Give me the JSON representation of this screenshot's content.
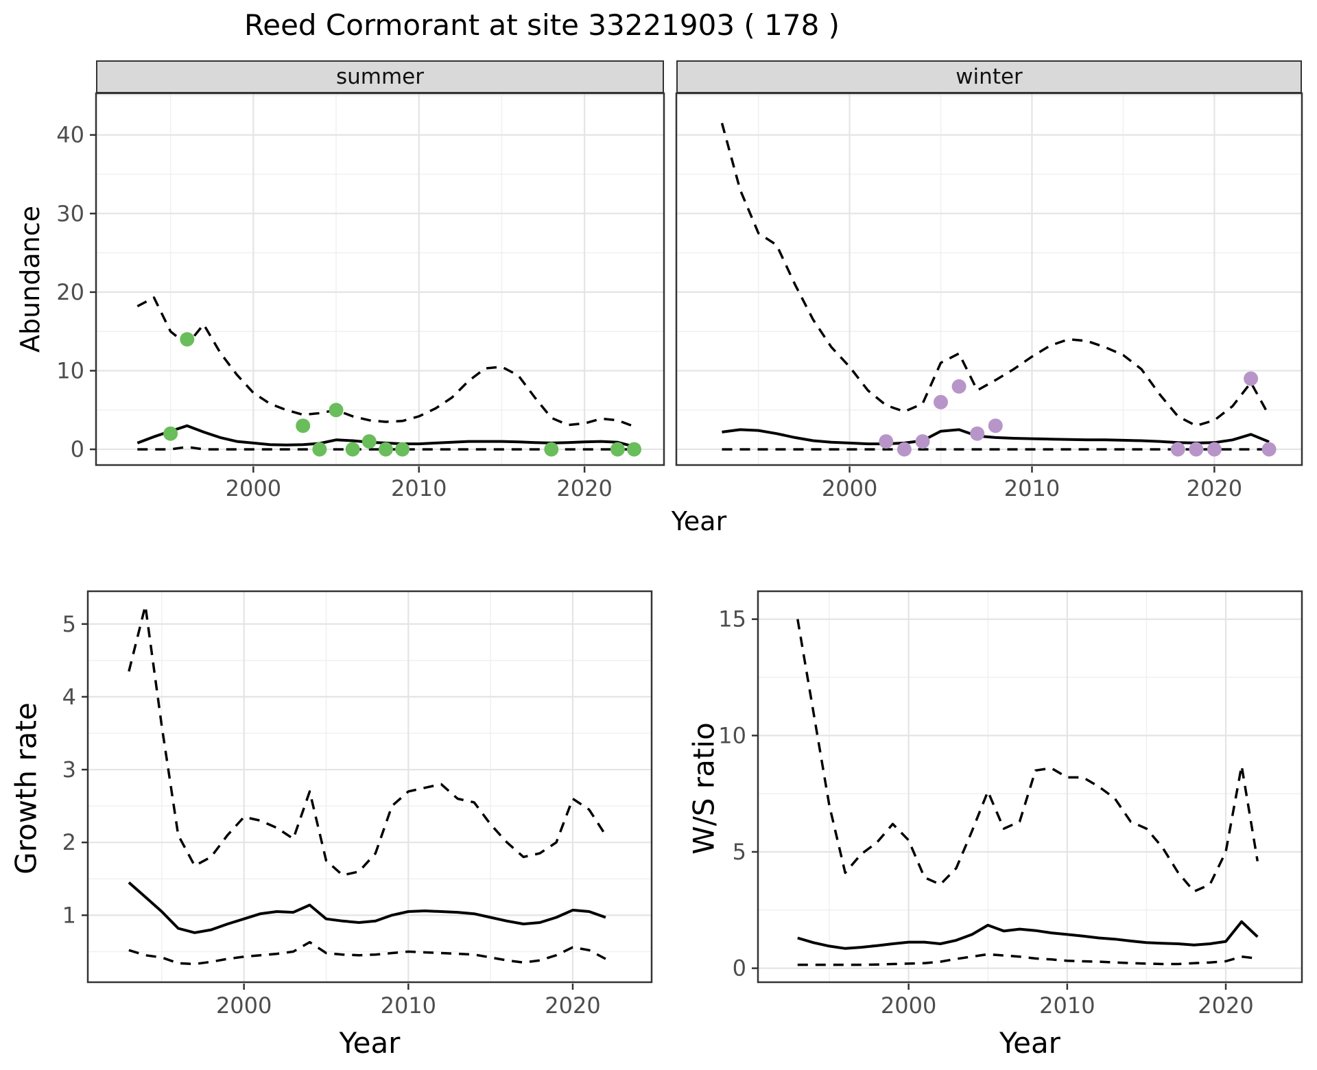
{
  "title": "Reed Cormorant at site 33221903 ( 178 )",
  "facets": {
    "summer": "summer",
    "winter": "winter"
  },
  "axis_titles": {
    "x_top": "Year",
    "x_bottom_left": "Year",
    "x_bottom_right": "Year",
    "y_abundance": "Abundance",
    "y_growth": "Growth rate",
    "y_ws": "W/S ratio"
  },
  "colors": {
    "summer_point": "#6ABD5B",
    "winter_point": "#B795C9",
    "line": "#000000",
    "grid_major": "#E4E4E4",
    "grid_minor": "#F0F0F0",
    "panel_border": "#333333",
    "strip_bg": "#D9D9D9",
    "tick_text": "#4D4D4D"
  },
  "chart_data": [
    {
      "id": "abundance_summer",
      "type": "line",
      "facet": "summer",
      "title": "Abundance - summer facet: model median (solid), 95% CI (dashed), observed counts (green points)",
      "xlabel": "Year",
      "ylabel": "Abundance",
      "xlim": [
        1990.5,
        2024.8
      ],
      "ylim": [
        -2,
        45.3
      ],
      "xticks": [
        2000,
        2010,
        2020
      ],
      "xticks_minor": [
        1995,
        2005,
        2015
      ],
      "yticks": [
        0,
        10,
        20,
        30,
        40
      ],
      "yticks_minor": [
        5,
        15,
        25,
        35,
        45
      ],
      "grid": true,
      "legend": "none",
      "x": [
        1993,
        1994,
        1995,
        1996,
        1997,
        1998,
        1999,
        2000,
        2001,
        2002,
        2003,
        2004,
        2005,
        2006,
        2007,
        2008,
        2009,
        2010,
        2011,
        2012,
        2013,
        2014,
        2015,
        2016,
        2017,
        2018,
        2019,
        2020,
        2021,
        2022,
        2023
      ],
      "series": [
        {
          "name": "upper_ci",
          "style": "dashed",
          "values": [
            18.2,
            19.3,
            15.0,
            13.3,
            15.9,
            12.3,
            9.5,
            7.2,
            5.8,
            5.0,
            4.4,
            4.6,
            5.0,
            4.2,
            3.7,
            3.5,
            3.6,
            4.2,
            5.2,
            6.6,
            8.7,
            10.3,
            10.5,
            9.4,
            6.6,
            4.0,
            3.1,
            3.3,
            3.9,
            3.7,
            2.9
          ]
        },
        {
          "name": "median",
          "style": "solid",
          "values": [
            0.8,
            1.6,
            2.3,
            3.0,
            2.2,
            1.5,
            1.0,
            0.8,
            0.6,
            0.55,
            0.6,
            0.75,
            1.2,
            1.1,
            0.9,
            0.8,
            0.7,
            0.7,
            0.8,
            0.9,
            1.0,
            1.0,
            1.0,
            0.95,
            0.85,
            0.8,
            0.85,
            0.95,
            1.0,
            0.9,
            0.35
          ]
        },
        {
          "name": "lower_ci",
          "style": "dashed",
          "values": [
            0,
            0,
            0,
            0.3,
            0,
            0,
            0,
            0,
            0,
            0,
            0,
            0,
            0,
            0,
            0,
            0,
            0,
            0,
            0,
            0,
            0,
            0,
            0,
            0,
            0,
            0,
            0,
            0,
            0,
            0,
            0
          ]
        }
      ],
      "points": {
        "name": "observed_counts",
        "color_key": "summer_point",
        "data": [
          [
            1995,
            2
          ],
          [
            1996,
            14
          ],
          [
            2003,
            3
          ],
          [
            2004,
            0
          ],
          [
            2005,
            5
          ],
          [
            2006,
            0
          ],
          [
            2007,
            1
          ],
          [
            2008,
            0
          ],
          [
            2009,
            0
          ],
          [
            2018,
            0
          ],
          [
            2022,
            0
          ],
          [
            2023,
            0
          ]
        ]
      }
    },
    {
      "id": "abundance_winter",
      "type": "line",
      "facet": "winter",
      "title": "Abundance - winter facet: model median (solid), 95% CI (dashed), observed counts (purple points)",
      "xlabel": "Year",
      "ylabel": "Abundance",
      "xlim": [
        1990.5,
        2024.8
      ],
      "ylim": [
        -2,
        45.3
      ],
      "xticks": [
        2000,
        2010,
        2020
      ],
      "xticks_minor": [
        1995,
        2005,
        2015
      ],
      "yticks": [
        0,
        10,
        20,
        30,
        40
      ],
      "yticks_minor": [
        5,
        15,
        25,
        35,
        45
      ],
      "grid": true,
      "legend": "none",
      "x": [
        1993,
        1994,
        1995,
        1996,
        1997,
        1998,
        1999,
        2000,
        2001,
        2002,
        2003,
        2004,
        2005,
        2006,
        2007,
        2008,
        2009,
        2010,
        2011,
        2012,
        2013,
        2014,
        2015,
        2016,
        2017,
        2018,
        2019,
        2020,
        2021,
        2022,
        2023
      ],
      "series": [
        {
          "name": "upper_ci",
          "style": "dashed",
          "values": [
            41.5,
            33.0,
            27.5,
            26.0,
            21.0,
            16.5,
            13.0,
            10.5,
            7.5,
            5.6,
            4.8,
            5.8,
            11.0,
            12.2,
            7.5,
            8.8,
            10.2,
            11.8,
            13.2,
            14.0,
            13.8,
            13.0,
            12.0,
            10.2,
            7.0,
            4.2,
            3.0,
            3.7,
            5.5,
            8.5,
            4.3
          ]
        },
        {
          "name": "median",
          "style": "solid",
          "values": [
            2.2,
            2.5,
            2.4,
            2.0,
            1.5,
            1.1,
            0.9,
            0.8,
            0.7,
            0.7,
            0.8,
            1.1,
            2.3,
            2.5,
            1.7,
            1.5,
            1.4,
            1.35,
            1.3,
            1.25,
            1.2,
            1.2,
            1.15,
            1.1,
            1.0,
            0.85,
            0.8,
            0.85,
            1.2,
            1.9,
            0.95
          ]
        },
        {
          "name": "lower_ci",
          "style": "dashed",
          "values": [
            0,
            0,
            0,
            0,
            0,
            0,
            0,
            0,
            0,
            0,
            0,
            0,
            0,
            0,
            0,
            0,
            0,
            0,
            0,
            0,
            0,
            0,
            0,
            0,
            0,
            0,
            0,
            0,
            0,
            0,
            0
          ]
        }
      ],
      "points": {
        "name": "observed_counts",
        "color_key": "winter_point",
        "data": [
          [
            2002,
            1
          ],
          [
            2003,
            0
          ],
          [
            2004,
            1
          ],
          [
            2005,
            6
          ],
          [
            2006,
            8
          ],
          [
            2007,
            2
          ],
          [
            2008,
            3
          ],
          [
            2018,
            0
          ],
          [
            2019,
            0
          ],
          [
            2020,
            0
          ],
          [
            2022,
            9
          ],
          [
            2023,
            0
          ]
        ]
      }
    },
    {
      "id": "growth_rate",
      "type": "line",
      "facet": null,
      "title": "Growth rate: median (solid) with 95% CI (dashed)",
      "xlabel": "Year",
      "ylabel": "Growth rate",
      "xlim": [
        1990.5,
        2024.8
      ],
      "ylim": [
        0.08,
        5.45
      ],
      "xticks": [
        2000,
        2010,
        2020
      ],
      "xticks_minor": [
        1995,
        2005,
        2015
      ],
      "yticks": [
        1,
        2,
        3,
        4,
        5
      ],
      "yticks_minor": [
        0.5,
        1.5,
        2.5,
        3.5,
        4.5
      ],
      "grid": true,
      "legend": "none",
      "x": [
        1993,
        1994,
        1995,
        1996,
        1997,
        1998,
        1999,
        2000,
        2001,
        2002,
        2003,
        2004,
        2005,
        2006,
        2007,
        2008,
        2009,
        2010,
        2011,
        2012,
        2013,
        2014,
        2015,
        2016,
        2017,
        2018,
        2019,
        2020,
        2021,
        2022
      ],
      "series": [
        {
          "name": "upper_ci",
          "style": "dashed",
          "values": [
            4.35,
            5.25,
            3.6,
            2.1,
            1.68,
            1.8,
            2.1,
            2.35,
            2.3,
            2.2,
            2.05,
            2.7,
            1.75,
            1.55,
            1.6,
            1.85,
            2.5,
            2.7,
            2.75,
            2.8,
            2.6,
            2.55,
            2.25,
            2.0,
            1.8,
            1.85,
            2.0,
            2.6,
            2.45,
            2.1
          ]
        },
        {
          "name": "median",
          "style": "solid",
          "values": [
            1.45,
            1.25,
            1.05,
            0.82,
            0.76,
            0.8,
            0.88,
            0.95,
            1.02,
            1.05,
            1.04,
            1.14,
            0.95,
            0.92,
            0.9,
            0.92,
            1.0,
            1.05,
            1.06,
            1.05,
            1.04,
            1.02,
            0.97,
            0.92,
            0.88,
            0.9,
            0.97,
            1.07,
            1.05,
            0.97
          ]
        },
        {
          "name": "lower_ci",
          "style": "dashed",
          "values": [
            0.52,
            0.45,
            0.42,
            0.34,
            0.33,
            0.36,
            0.4,
            0.43,
            0.45,
            0.47,
            0.5,
            0.63,
            0.48,
            0.46,
            0.45,
            0.46,
            0.48,
            0.5,
            0.49,
            0.48,
            0.47,
            0.46,
            0.42,
            0.38,
            0.35,
            0.38,
            0.45,
            0.56,
            0.52,
            0.4
          ]
        }
      ],
      "points": null
    },
    {
      "id": "ws_ratio",
      "type": "line",
      "facet": null,
      "title": "Winter/Summer ratio: median (solid) with 95% CI (dashed)",
      "xlabel": "Year",
      "ylabel": "W/S ratio",
      "xlim": [
        1990.5,
        2024.8
      ],
      "ylim": [
        -0.6,
        16.2
      ],
      "xticks": [
        2000,
        2010,
        2020
      ],
      "xticks_minor": [
        1995,
        2005,
        2015
      ],
      "yticks": [
        0,
        5,
        10,
        15
      ],
      "yticks_minor": [
        2.5,
        7.5,
        12.5
      ],
      "grid": true,
      "legend": "none",
      "x": [
        1993,
        1994,
        1995,
        1996,
        1997,
        1998,
        1999,
        2000,
        2001,
        2002,
        2003,
        2004,
        2005,
        2006,
        2007,
        2008,
        2009,
        2010,
        2011,
        2012,
        2013,
        2014,
        2015,
        2016,
        2017,
        2018,
        2019,
        2020,
        2021,
        2022
      ],
      "series": [
        {
          "name": "upper_ci",
          "style": "dashed",
          "values": [
            15.0,
            11.0,
            7.0,
            4.1,
            4.9,
            5.4,
            6.2,
            5.5,
            3.9,
            3.6,
            4.3,
            5.9,
            7.6,
            6.0,
            6.3,
            8.5,
            8.6,
            8.2,
            8.2,
            7.8,
            7.3,
            6.3,
            6.0,
            5.2,
            4.1,
            3.3,
            3.6,
            5.0,
            8.7,
            4.6
          ]
        },
        {
          "name": "median",
          "style": "solid",
          "values": [
            1.3,
            1.1,
            0.95,
            0.85,
            0.9,
            0.97,
            1.05,
            1.12,
            1.12,
            1.05,
            1.2,
            1.45,
            1.85,
            1.6,
            1.68,
            1.62,
            1.52,
            1.45,
            1.38,
            1.3,
            1.25,
            1.17,
            1.1,
            1.07,
            1.05,
            1.0,
            1.05,
            1.15,
            2.0,
            1.35
          ]
        },
        {
          "name": "lower_ci",
          "style": "dashed",
          "values": [
            0.15,
            0.15,
            0.15,
            0.15,
            0.15,
            0.16,
            0.18,
            0.2,
            0.22,
            0.28,
            0.4,
            0.5,
            0.6,
            0.55,
            0.5,
            0.42,
            0.38,
            0.32,
            0.3,
            0.28,
            0.25,
            0.22,
            0.2,
            0.18,
            0.18,
            0.22,
            0.25,
            0.3,
            0.5,
            0.42
          ]
        }
      ],
      "points": null
    }
  ]
}
